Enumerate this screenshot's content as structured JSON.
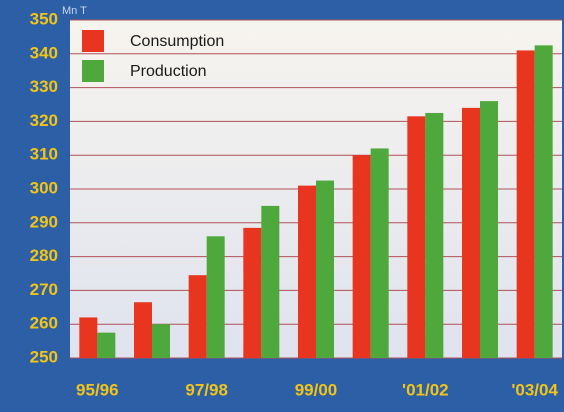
{
  "chart_data": {
    "type": "bar",
    "y_label": "Mn T",
    "categories": [
      "95/96",
      null,
      "97/98",
      null,
      "99/00",
      null,
      "'01/02",
      null,
      "'03/04"
    ],
    "series": [
      {
        "name": "Consumption",
        "color": "#e8351f",
        "values": [
          262,
          266.5,
          274.5,
          288.5,
          301,
          310,
          321.5,
          324,
          341
        ]
      },
      {
        "name": "Production",
        "color": "#4fa83c",
        "values": [
          257.5,
          260,
          286,
          295,
          302.5,
          312,
          322.5,
          326,
          342.5
        ]
      }
    ],
    "ylim": [
      250,
      350
    ],
    "yticks": [
      250,
      260,
      270,
      280,
      290,
      300,
      310,
      320,
      330,
      340,
      350
    ],
    "grid": true,
    "legend": "upper left"
  }
}
